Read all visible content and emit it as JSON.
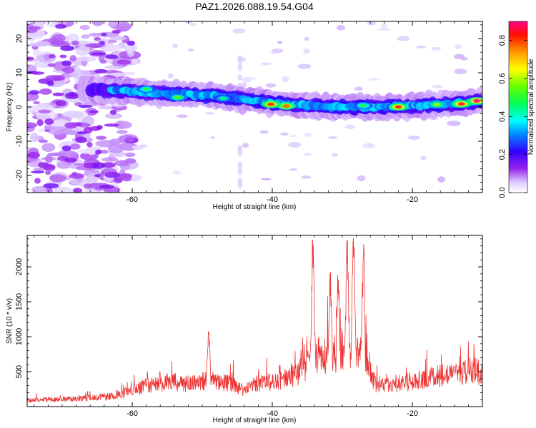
{
  "chart_data": [
    {
      "type": "heatmap",
      "title": "PAZ1.2026.088.19.54.G04",
      "xlabel": "Height of straight line (km)",
      "ylabel": "Frequency (Hz)",
      "xlim": [
        -75,
        -10
      ],
      "ylim": [
        -25,
        25
      ],
      "xticks": [
        -60,
        -40,
        -20
      ],
      "yticks": [
        -20,
        -10,
        0,
        10,
        20
      ],
      "grid": false,
      "colorbar": {
        "label": "Normalized spectral amplitude",
        "range": [
          0,
          0.9
        ],
        "ticks": [
          0.0,
          0.2,
          0.4,
          0.6,
          0.8
        ]
      },
      "ridge_center_hz": [
        {
          "x": -64,
          "y": 5.0
        },
        {
          "x": -56,
          "y": 4.0
        },
        {
          "x": -50,
          "y": 3.5
        },
        {
          "x": -45,
          "y": 2.5
        },
        {
          "x": -40,
          "y": 1.2
        },
        {
          "x": -35,
          "y": 0.5
        },
        {
          "x": -30,
          "y": 0.0
        },
        {
          "x": -25,
          "y": 0.0
        },
        {
          "x": -20,
          "y": 0.3
        },
        {
          "x": -15,
          "y": 0.8
        },
        {
          "x": -11,
          "y": 1.6
        }
      ],
      "peaks": [
        {
          "x": -40.2,
          "y": 0.8,
          "value": 0.82
        },
        {
          "x": -38.0,
          "y": 0.3,
          "value": 0.78
        },
        {
          "x": -22.0,
          "y": 0.0,
          "value": 0.85
        },
        {
          "x": -13.0,
          "y": 0.9,
          "value": 0.86
        },
        {
          "x": -10.8,
          "y": 1.8,
          "value": 0.9
        },
        {
          "x": -16.5,
          "y": 0.7,
          "value": 0.6
        },
        {
          "x": -27.0,
          "y": 0.4,
          "value": 0.5
        },
        {
          "x": -53.5,
          "y": 2.8,
          "value": 0.55
        },
        {
          "x": -58.0,
          "y": 5.2,
          "value": 0.5
        },
        {
          "x": -47.0,
          "y": 2.5,
          "value": 0.45
        }
      ]
    },
    {
      "type": "line",
      "xlabel": "Height of straight line (km)",
      "ylabel": "SNR (10 * v/v)",
      "xlim": [
        -75,
        -10
      ],
      "ylim": [
        0,
        2450
      ],
      "xticks": [
        -60,
        -40,
        -20
      ],
      "yticks": [
        500,
        1000,
        1500,
        2000
      ],
      "color": "#ee3333",
      "envelope": [
        {
          "x": -75,
          "y": 130
        },
        {
          "x": -68,
          "y": 150
        },
        {
          "x": -63,
          "y": 200
        },
        {
          "x": -60,
          "y": 300
        },
        {
          "x": -58,
          "y": 420
        },
        {
          "x": -55,
          "y": 480
        },
        {
          "x": -52,
          "y": 450
        },
        {
          "x": -49,
          "y": 520
        },
        {
          "x": -46,
          "y": 450
        },
        {
          "x": -44,
          "y": 320
        },
        {
          "x": -42,
          "y": 450
        },
        {
          "x": -39,
          "y": 500
        },
        {
          "x": -37,
          "y": 600
        },
        {
          "x": -35,
          "y": 800
        },
        {
          "x": -33,
          "y": 900
        },
        {
          "x": -30,
          "y": 900
        },
        {
          "x": -27,
          "y": 900
        },
        {
          "x": -25,
          "y": 400
        },
        {
          "x": -22,
          "y": 450
        },
        {
          "x": -18,
          "y": 550
        },
        {
          "x": -14,
          "y": 650
        },
        {
          "x": -11,
          "y": 750
        },
        {
          "x": -10,
          "y": 580
        }
      ],
      "peaks": [
        {
          "x": -49.1,
          "y": 1170
        },
        {
          "x": -34.2,
          "y": 2450
        },
        {
          "x": -31.7,
          "y": 1820
        },
        {
          "x": -30.6,
          "y": 1760
        },
        {
          "x": -29.3,
          "y": 2320
        },
        {
          "x": -28.4,
          "y": 2420
        },
        {
          "x": -27.0,
          "y": 2140
        }
      ]
    }
  ]
}
